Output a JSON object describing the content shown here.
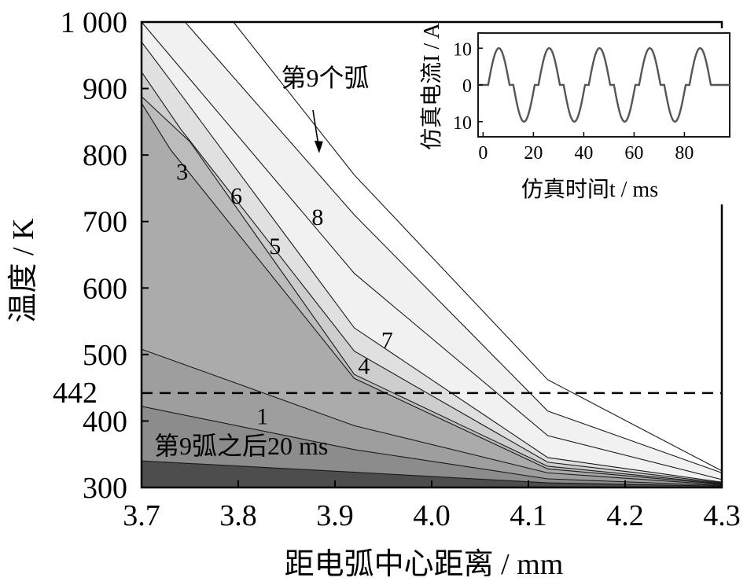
{
  "chart_data": [
    {
      "type": "area",
      "title": "",
      "xlabel": "距电弧中心距离 / mm",
      "ylabel": "温度 / K",
      "xlim": [
        3.7,
        4.3
      ],
      "ylim": [
        300,
        1000
      ],
      "x_ticks": [
        "3.7",
        "3.8",
        "3.9",
        "4.0",
        "4.1",
        "4.2",
        "4.3"
      ],
      "y_ticks": [
        "300",
        "400",
        "500",
        "600",
        "700",
        "800",
        "900",
        "1 000"
      ],
      "grid": false,
      "fill_colors": [
        "#4d4d4d",
        "#6e6e6e",
        "#8c8c8c",
        "#9e9e9e",
        "#ababab",
        "#bcbcbc",
        "#cdcdcd",
        "#e0e0e0",
        "#f1f1f1"
      ],
      "series": [
        {
          "name": "1",
          "x": [
            3.7,
            3.92,
            4.12,
            4.3
          ],
          "y": [
            340,
            323,
            307,
            302
          ]
        },
        {
          "name": "",
          "x": [
            3.7,
            3.92,
            4.12,
            4.3
          ],
          "y": [
            422,
            357,
            313,
            303
          ]
        },
        {
          "name": "",
          "x": [
            3.7,
            3.92,
            4.12,
            4.3
          ],
          "y": [
            508,
            393,
            322,
            304
          ]
        },
        {
          "name": "3",
          "x": [
            3.7,
            3.73,
            3.92,
            4.12,
            4.3
          ],
          "y": [
            878,
            808,
            464,
            328,
            305
          ]
        },
        {
          "name": "4",
          "x": [
            3.7,
            3.75,
            3.92,
            4.12,
            4.3
          ],
          "y": [
            888,
            820,
            470,
            332,
            306
          ]
        },
        {
          "name": "5",
          "x": [
            3.7,
            3.74,
            3.92,
            4.12,
            4.3
          ],
          "y": [
            925,
            840,
            505,
            338,
            307
          ]
        },
        {
          "name": "6",
          "x": [
            3.7,
            3.73,
            3.92,
            4.12,
            4.3
          ],
          "y": [
            970,
            912,
            540,
            345,
            308
          ]
        },
        {
          "name": "7",
          "x": [
            3.7,
            3.92,
            4.12,
            4.3
          ],
          "y": [
            1000,
            622,
            378,
            312
          ]
        },
        {
          "name": "8",
          "x": [
            3.7,
            3.745,
            3.92,
            4.12,
            4.3
          ],
          "y": [
            1000,
            1000,
            710,
            415,
            322
          ]
        }
      ],
      "reference_line": {
        "y": 442,
        "label": "442",
        "style": "dashed"
      },
      "annotations": [
        {
          "text": "第9个弧",
          "x": 3.885,
          "y": 915,
          "arrow_to": {
            "x": 3.882,
            "y": 805
          }
        },
        {
          "text": "第9弧之后20 ms",
          "x": 3.715,
          "y": 352
        }
      ]
    },
    {
      "type": "line",
      "title": "",
      "xlabel": "仿真时间t / ms",
      "ylabel": "仿真电流I / A",
      "xlim": [
        -2,
        98
      ],
      "ylim": [
        -12,
        12
      ],
      "x_ticks": [
        "0",
        "20",
        "40",
        "60",
        "80"
      ],
      "y_ticks": [
        "10",
        "0",
        "10"
      ],
      "grid": false,
      "series": [
        {
          "name": "",
          "waveform": "half-period-sine",
          "amplitude": 8.5,
          "period": 20,
          "t_start": 2,
          "t_end": 92,
          "plateau": 1.5
        }
      ]
    }
  ]
}
